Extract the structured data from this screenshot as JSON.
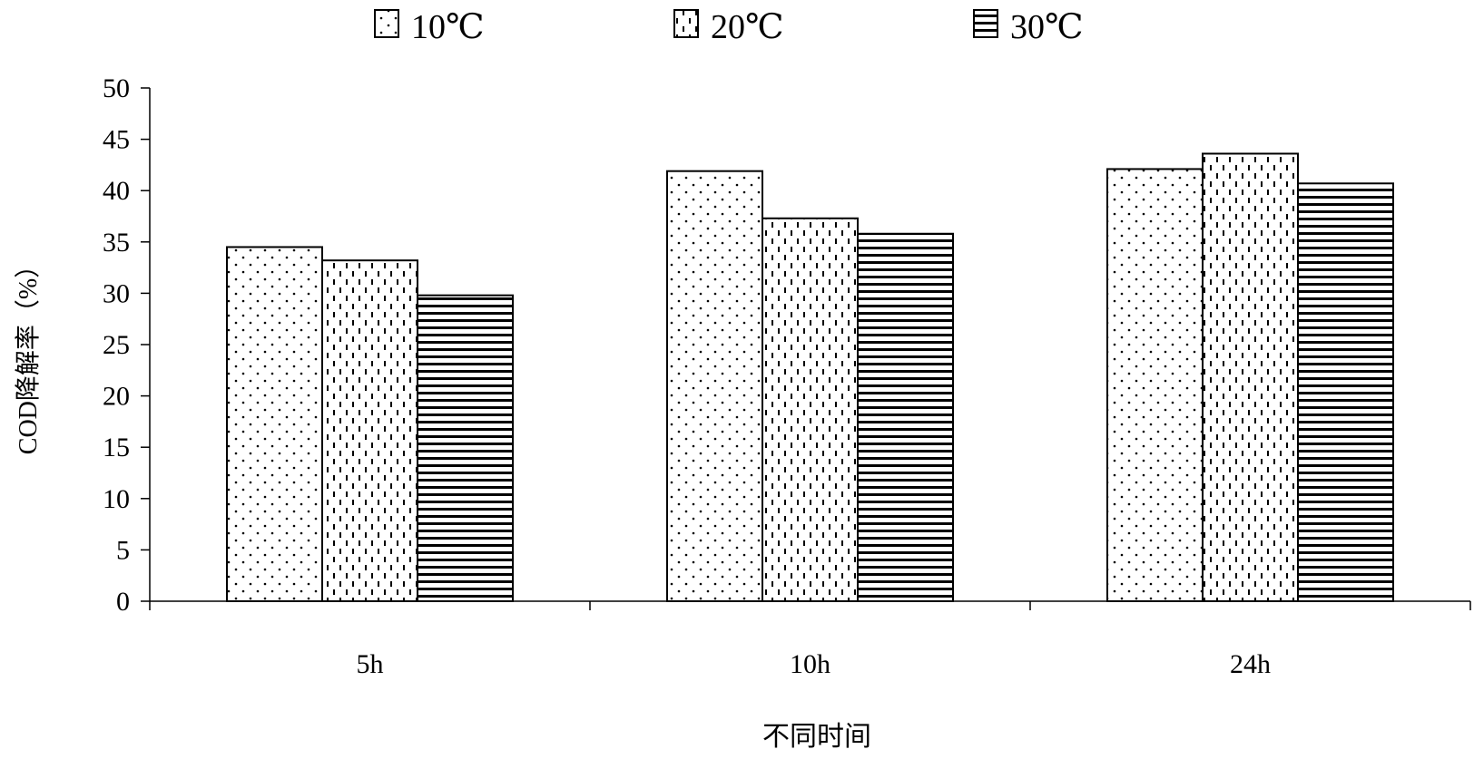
{
  "chart_data": {
    "type": "bar",
    "title": "",
    "xlabel": "不同时间",
    "ylabel": "COD降解率（%）",
    "categories": [
      "5h",
      "10h",
      "24h"
    ],
    "ylim": [
      0,
      50
    ],
    "yticks": [
      0,
      5,
      10,
      15,
      20,
      25,
      30,
      35,
      40,
      45,
      50
    ],
    "grid": false,
    "legend_position": "top",
    "series": [
      {
        "name": "10℃",
        "pattern": "dots",
        "values": [
          34.5,
          41.9,
          42.1
        ]
      },
      {
        "name": "20℃",
        "pattern": "dashes",
        "values": [
          33.2,
          37.3,
          43.6
        ]
      },
      {
        "name": "30℃",
        "pattern": "horizontal-lines",
        "values": [
          29.8,
          35.8,
          40.7
        ]
      }
    ]
  }
}
